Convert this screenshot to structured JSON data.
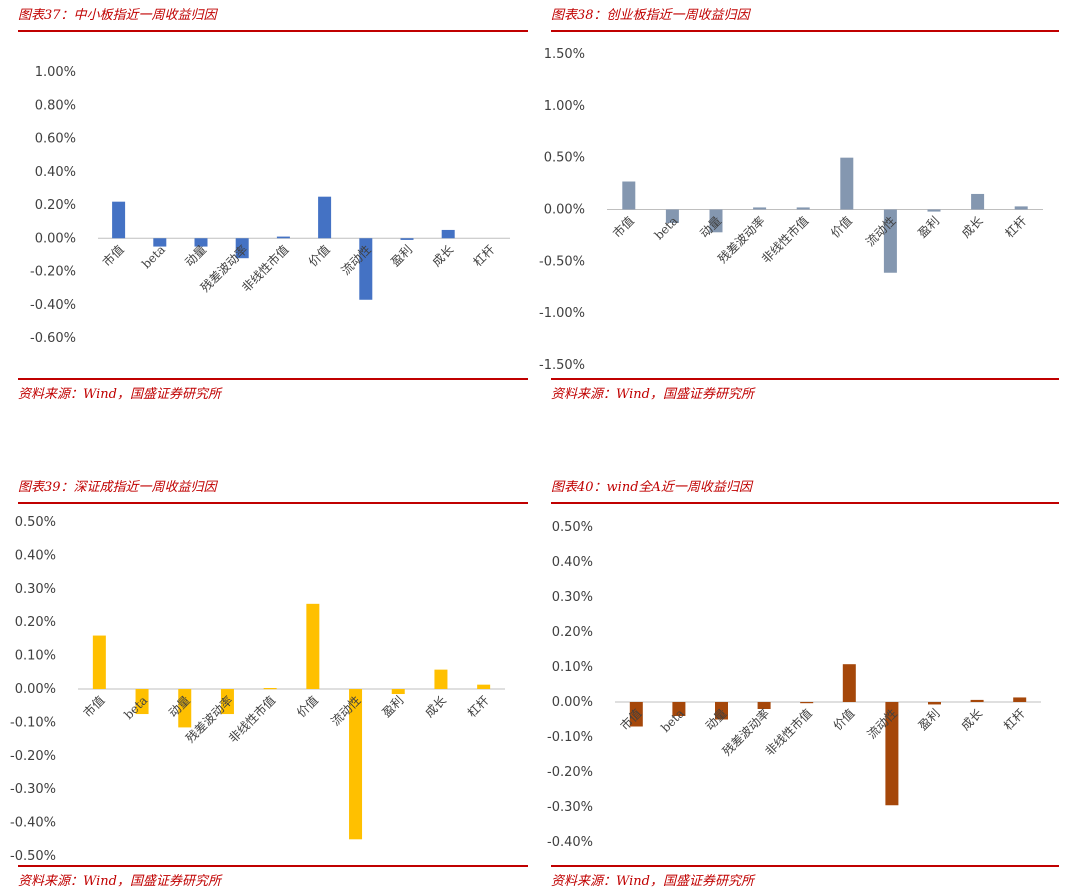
{
  "source_label": "资料来源：Wind，国盛证券研究所",
  "categories": [
    "市值",
    "beta",
    "动量",
    "残差波动率",
    "非线性市值",
    "价值",
    "流动性",
    "盈利",
    "成长",
    "杠杆"
  ],
  "chart_data": [
    {
      "type": "bar",
      "title": "图表37：中小板指近一周收益归因",
      "color": "#4472c4",
      "ylim": [
        -0.6,
        1.0
      ],
      "yticks": [
        "1.00%",
        "0.80%",
        "0.60%",
        "0.40%",
        "0.20%",
        "0.00%",
        "-0.20%",
        "-0.40%",
        "-0.60%"
      ],
      "yticks_values": [
        1.0,
        0.8,
        0.6,
        0.4,
        0.2,
        0.0,
        -0.2,
        -0.4,
        -0.6
      ],
      "categories": [
        "市值",
        "beta",
        "动量",
        "残差波动率",
        "非线性市值",
        "价值",
        "流动性",
        "盈利",
        "成长",
        "杠杆"
      ],
      "values": [
        0.22,
        -0.05,
        -0.05,
        -0.12,
        0.01,
        0.25,
        -0.37,
        -0.01,
        0.05,
        0.0
      ]
    },
    {
      "type": "bar",
      "title": "图表38：创业板指近一周收益归因",
      "color": "#8497b0",
      "ylim": [
        -1.5,
        1.5
      ],
      "yticks": [
        "1.50%",
        "1.00%",
        "0.50%",
        "0.00%",
        "-0.50%",
        "-1.00%",
        "-1.50%"
      ],
      "yticks_values": [
        1.5,
        1.0,
        0.5,
        0.0,
        -0.5,
        -1.0,
        -1.5
      ],
      "categories": [
        "市值",
        "beta",
        "动量",
        "残差波动率",
        "非线性市值",
        "价值",
        "流动性",
        "盈利",
        "成长",
        "杠杆"
      ],
      "values": [
        0.27,
        -0.13,
        -0.22,
        0.02,
        0.02,
        0.5,
        -0.61,
        -0.02,
        0.15,
        0.03
      ]
    },
    {
      "type": "bar",
      "title": "图表39：深证成指近一周收益归因",
      "color": "#ffc000",
      "ylim": [
        -0.5,
        0.5
      ],
      "yticks": [
        "0.50%",
        "0.40%",
        "0.30%",
        "0.20%",
        "0.10%",
        "0.00%",
        "-0.10%",
        "-0.20%",
        "-0.30%",
        "-0.40%",
        "-0.50%"
      ],
      "yticks_values": [
        0.5,
        0.4,
        0.3,
        0.2,
        0.1,
        0.0,
        -0.1,
        -0.2,
        -0.3,
        -0.4,
        -0.5
      ],
      "categories": [
        "市值",
        "beta",
        "动量",
        "残差波动率",
        "非线性市值",
        "价值",
        "流动性",
        "盈利",
        "成长",
        "杠杆"
      ],
      "values": [
        0.16,
        -0.075,
        -0.115,
        -0.075,
        0.003,
        0.255,
        -0.45,
        -0.015,
        0.058,
        0.013
      ]
    },
    {
      "type": "bar",
      "title": "图表40：wind全A近一周收益归因",
      "color": "#a5470a",
      "ylim": [
        -0.4,
        0.5
      ],
      "yticks": [
        "0.50%",
        "0.40%",
        "0.30%",
        "0.20%",
        "0.10%",
        "0.00%",
        "-0.10%",
        "-0.20%",
        "-0.30%",
        "-0.40%"
      ],
      "yticks_values": [
        0.5,
        0.4,
        0.3,
        0.2,
        0.1,
        0.0,
        -0.1,
        -0.2,
        -0.3,
        -0.4
      ],
      "categories": [
        "市值",
        "beta",
        "动量",
        "残差波动率",
        "非线性市值",
        "价值",
        "流动性",
        "盈利",
        "成长",
        "杠杆"
      ],
      "values": [
        -0.07,
        -0.04,
        -0.05,
        -0.02,
        -0.003,
        0.108,
        -0.295,
        -0.007,
        0.006,
        0.013
      ]
    }
  ]
}
